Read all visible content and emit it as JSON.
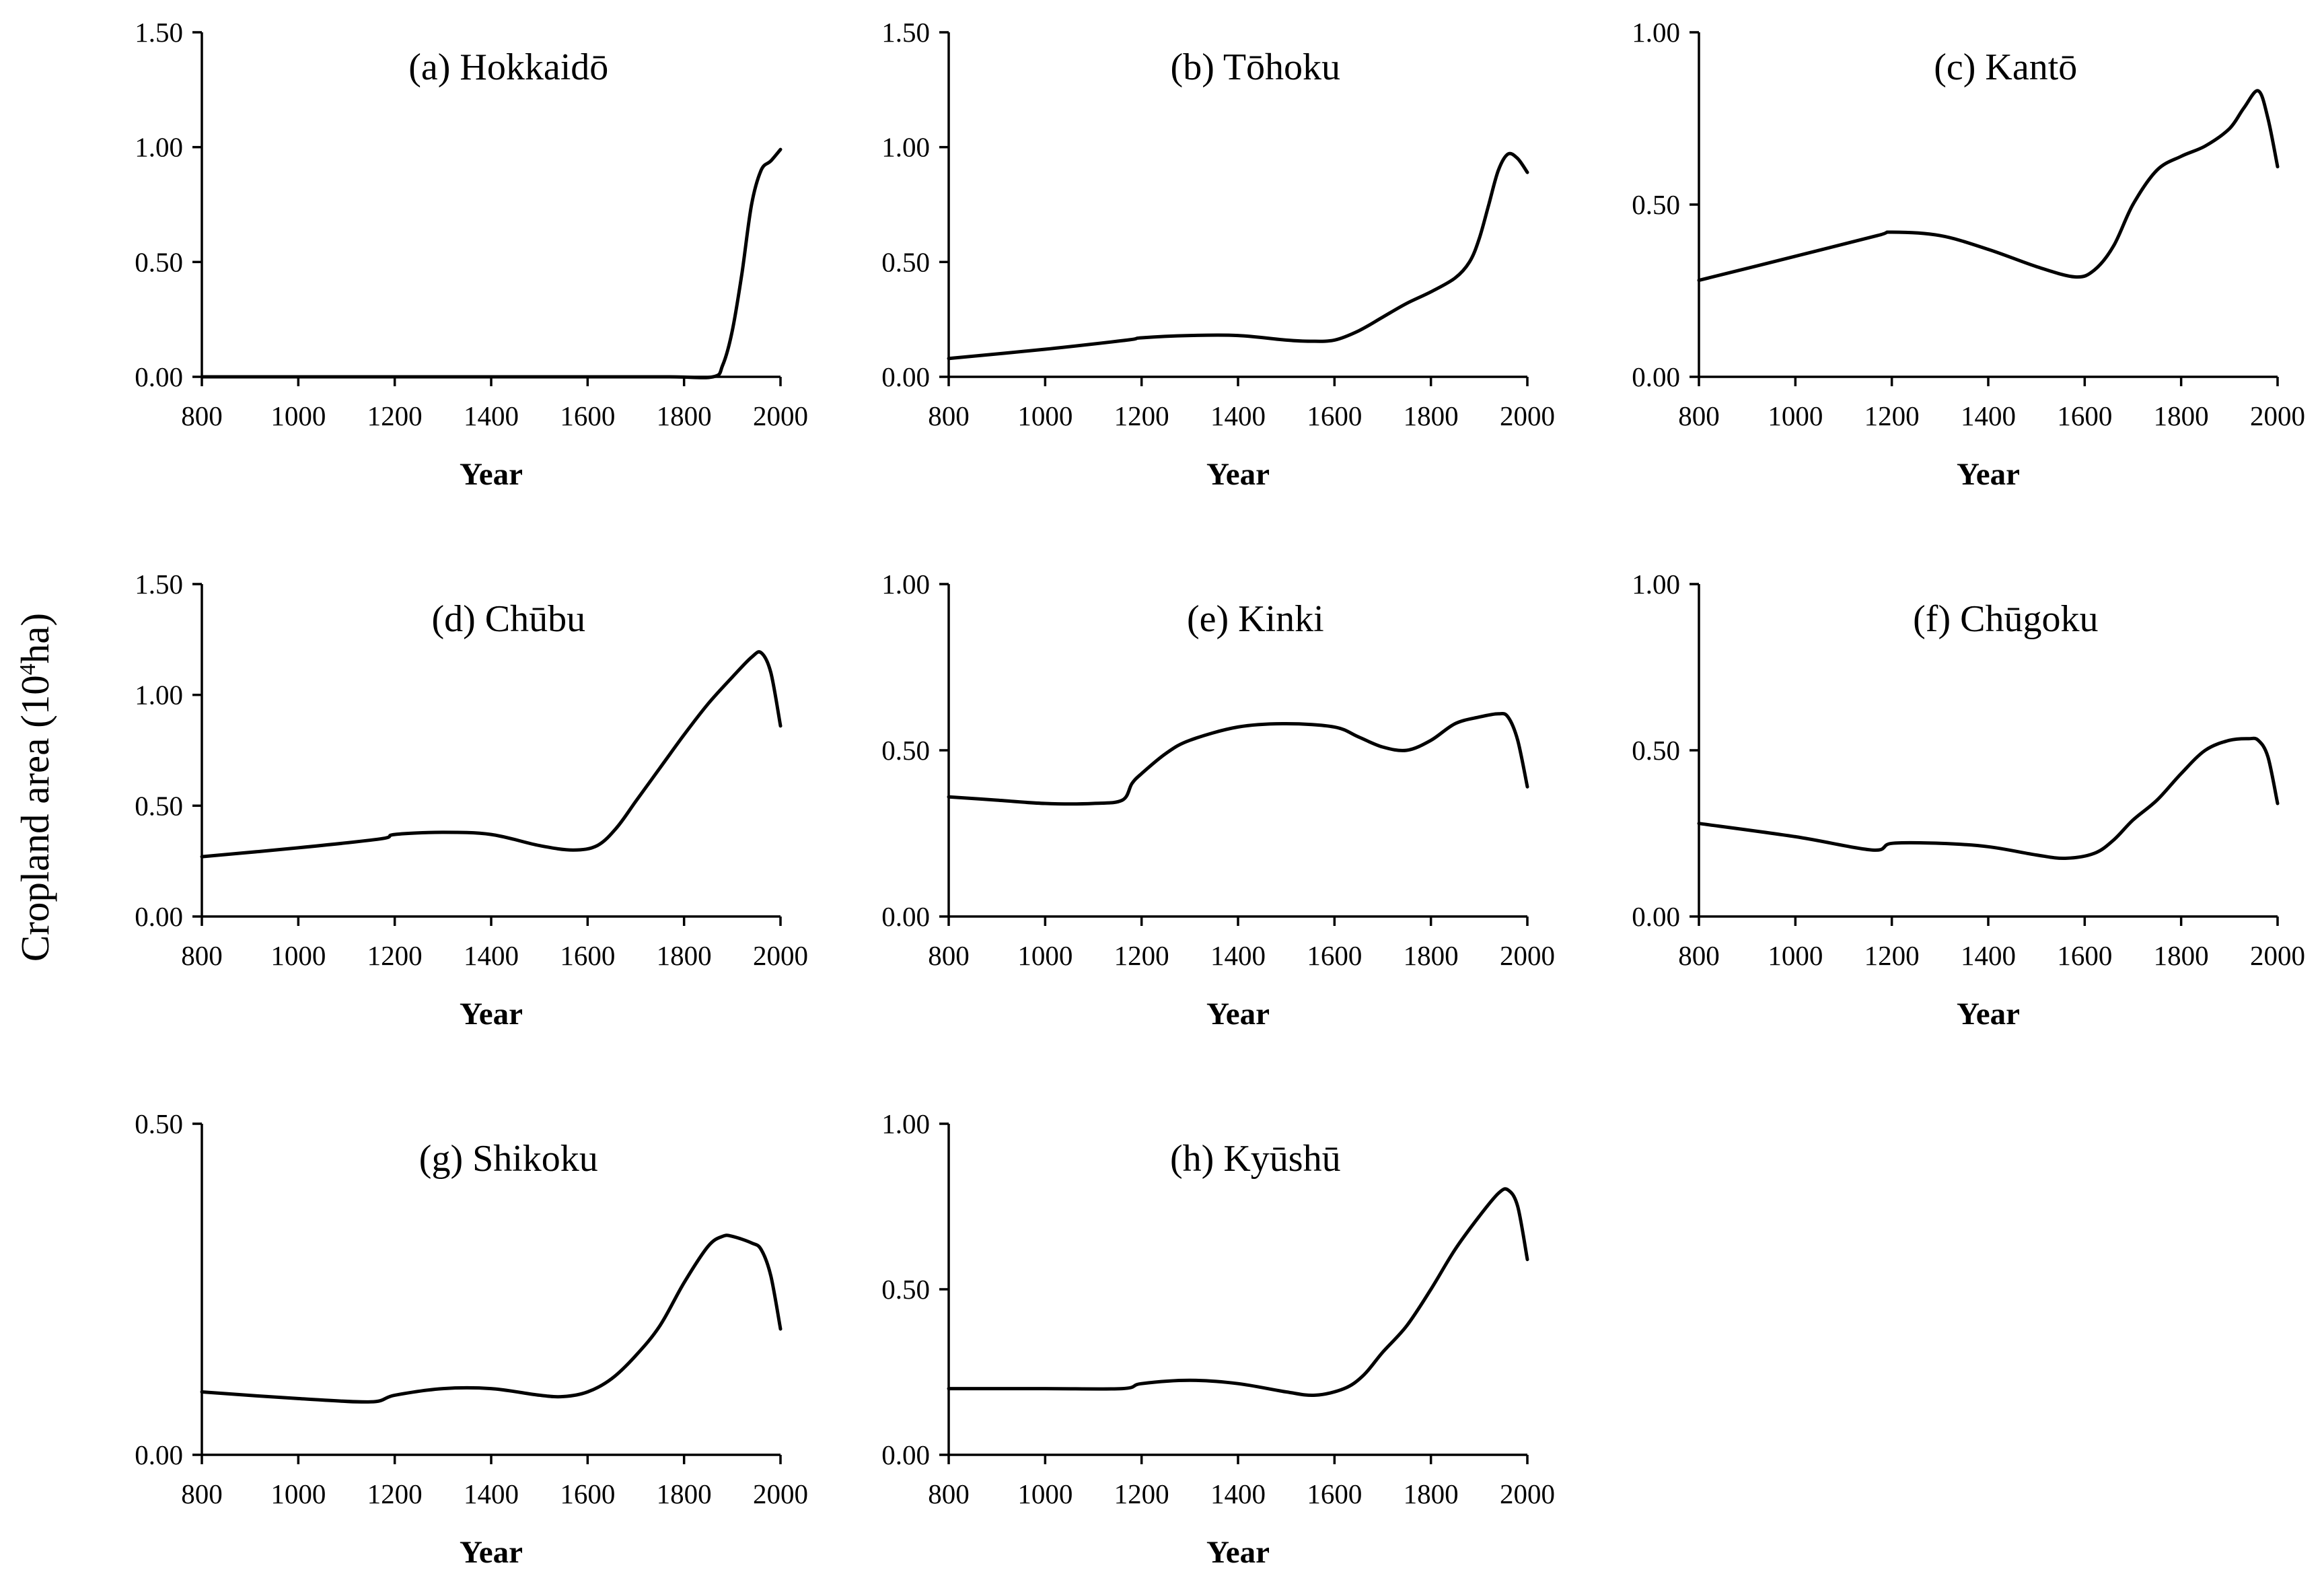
{
  "figure": {
    "ylabel_main": "Cropland area (10",
    "ylabel_sup": "4",
    "ylabel_unit": "ha)"
  },
  "chart_data": [
    {
      "type": "line",
      "title": "(a) Hokkaidō",
      "xlabel": "Year",
      "ylabel": "Cropland area (10^4 ha)",
      "xlim": [
        800,
        2000
      ],
      "ylim": [
        0,
        1.5
      ],
      "xticks": [
        800,
        1000,
        1200,
        1400,
        1600,
        1800,
        2000
      ],
      "yticks": [
        0.0,
        0.5,
        1.0,
        1.5
      ],
      "ytick_labels": [
        "0.00",
        "0.50",
        "1.00",
        "1.50"
      ],
      "series": [
        {
          "name": "Hokkaidō",
          "x": [
            800,
            1000,
            1200,
            1400,
            1600,
            1770,
            1860,
            1880,
            1900,
            1920,
            1940,
            1960,
            1980,
            2000
          ],
          "y": [
            0.0,
            0.0,
            0.0,
            0.0,
            0.0,
            0.0,
            0.0,
            0.05,
            0.2,
            0.45,
            0.75,
            0.9,
            0.94,
            0.99
          ]
        }
      ]
    },
    {
      "type": "line",
      "title": "(b) Tōhoku",
      "xlabel": "Year",
      "ylabel": "Cropland area (10^4 ha)",
      "xlim": [
        800,
        2000
      ],
      "ylim": [
        0,
        1.5
      ],
      "xticks": [
        800,
        1000,
        1200,
        1400,
        1600,
        1800,
        2000
      ],
      "yticks": [
        0.0,
        0.5,
        1.0,
        1.5
      ],
      "ytick_labels": [
        "0.00",
        "0.50",
        "1.00",
        "1.50"
      ],
      "series": [
        {
          "name": "Tōhoku",
          "x": [
            800,
            1000,
            1170,
            1200,
            1300,
            1400,
            1500,
            1550,
            1600,
            1650,
            1700,
            1750,
            1800,
            1850,
            1880,
            1900,
            1920,
            1940,
            1960,
            1980,
            2000
          ],
          "y": [
            0.08,
            0.12,
            0.16,
            0.17,
            0.18,
            0.18,
            0.16,
            0.155,
            0.16,
            0.2,
            0.26,
            0.32,
            0.37,
            0.43,
            0.5,
            0.6,
            0.75,
            0.9,
            0.97,
            0.95,
            0.89
          ]
        }
      ]
    },
    {
      "type": "line",
      "title": "(c) Kantō",
      "xlabel": "Year",
      "ylabel": "Cropland area (10^4 ha)",
      "xlim": [
        800,
        2000
      ],
      "ylim": [
        0,
        1.0
      ],
      "xticks": [
        800,
        1000,
        1200,
        1400,
        1600,
        1800,
        2000
      ],
      "yticks": [
        0.0,
        0.5,
        1.0
      ],
      "ytick_labels": [
        "0.00",
        "0.50",
        "1.00"
      ],
      "series": [
        {
          "name": "Kantō",
          "x": [
            800,
            1000,
            1170,
            1200,
            1300,
            1400,
            1500,
            1580,
            1620,
            1660,
            1700,
            1750,
            1800,
            1850,
            1900,
            1930,
            1960,
            1980,
            2000
          ],
          "y": [
            0.28,
            0.35,
            0.41,
            0.42,
            0.41,
            0.37,
            0.32,
            0.29,
            0.31,
            0.38,
            0.5,
            0.6,
            0.64,
            0.67,
            0.72,
            0.78,
            0.83,
            0.75,
            0.61
          ]
        }
      ]
    },
    {
      "type": "line",
      "title": "(d) Chūbu",
      "xlabel": "Year",
      "ylabel": "Cropland area (10^4 ha)",
      "xlim": [
        800,
        2000
      ],
      "ylim": [
        0,
        1.5
      ],
      "xticks": [
        800,
        1000,
        1200,
        1400,
        1600,
        1800,
        2000
      ],
      "yticks": [
        0.0,
        0.5,
        1.0,
        1.5
      ],
      "ytick_labels": [
        "0.00",
        "0.50",
        "1.00",
        "1.50"
      ],
      "series": [
        {
          "name": "Chūbu",
          "x": [
            800,
            1000,
            1170,
            1200,
            1300,
            1400,
            1500,
            1570,
            1620,
            1660,
            1700,
            1750,
            1800,
            1850,
            1900,
            1940,
            1960,
            1980,
            2000
          ],
          "y": [
            0.27,
            0.31,
            0.35,
            0.37,
            0.38,
            0.37,
            0.32,
            0.3,
            0.32,
            0.4,
            0.52,
            0.67,
            0.82,
            0.96,
            1.08,
            1.17,
            1.19,
            1.1,
            0.86
          ]
        }
      ]
    },
    {
      "type": "line",
      "title": "(e) Kinki",
      "xlabel": "Year",
      "ylabel": "Cropland area (10^4 ha)",
      "xlim": [
        800,
        2000
      ],
      "ylim": [
        0,
        1.0
      ],
      "xticks": [
        800,
        1000,
        1200,
        1400,
        1600,
        1800,
        2000
      ],
      "yticks": [
        0.0,
        0.5,
        1.0
      ],
      "ytick_labels": [
        "0.00",
        "0.50",
        "1.00"
      ],
      "series": [
        {
          "name": "Kinki",
          "x": [
            800,
            900,
            1000,
            1100,
            1160,
            1180,
            1200,
            1250,
            1300,
            1400,
            1500,
            1600,
            1650,
            1700,
            1750,
            1800,
            1850,
            1900,
            1940,
            1960,
            1980,
            2000
          ],
          "y": [
            0.36,
            0.35,
            0.34,
            0.34,
            0.35,
            0.4,
            0.43,
            0.49,
            0.53,
            0.57,
            0.58,
            0.57,
            0.54,
            0.51,
            0.5,
            0.53,
            0.58,
            0.6,
            0.61,
            0.6,
            0.53,
            0.39
          ]
        }
      ]
    },
    {
      "type": "line",
      "title": "(f) Chūgoku",
      "xlabel": "Year",
      "ylabel": "Cropland area (10^4 ha)",
      "xlim": [
        800,
        2000
      ],
      "ylim": [
        0,
        1.0
      ],
      "xticks": [
        800,
        1000,
        1200,
        1400,
        1600,
        1800,
        2000
      ],
      "yticks": [
        0.0,
        0.5,
        1.0
      ],
      "ytick_labels": [
        "0.00",
        "0.50",
        "1.00"
      ],
      "series": [
        {
          "name": "Chūgoku",
          "x": [
            800,
            1000,
            1160,
            1200,
            1300,
            1400,
            1500,
            1560,
            1620,
            1660,
            1700,
            1750,
            1800,
            1850,
            1900,
            1940,
            1960,
            1980,
            2000
          ],
          "y": [
            0.28,
            0.24,
            0.2,
            0.22,
            0.22,
            0.21,
            0.185,
            0.175,
            0.19,
            0.23,
            0.29,
            0.35,
            0.43,
            0.5,
            0.53,
            0.535,
            0.53,
            0.48,
            0.34
          ]
        }
      ]
    },
    {
      "type": "line",
      "title": "(g) Shikoku",
      "xlabel": "Year",
      "ylabel": "Cropland area (10^4 ha)",
      "xlim": [
        800,
        2000
      ],
      "ylim": [
        0,
        0.5
      ],
      "xticks": [
        800,
        1000,
        1200,
        1400,
        1600,
        1800,
        2000
      ],
      "yticks": [
        0.0,
        0.5
      ],
      "ytick_labels": [
        "0.00",
        "0.50"
      ],
      "series": [
        {
          "name": "Shikoku",
          "x": [
            800,
            1000,
            1150,
            1200,
            1300,
            1400,
            1500,
            1550,
            1600,
            1650,
            1700,
            1750,
            1800,
            1850,
            1880,
            1900,
            1940,
            1960,
            1980,
            2000
          ],
          "y": [
            0.095,
            0.085,
            0.08,
            0.09,
            0.1,
            0.1,
            0.09,
            0.088,
            0.095,
            0.115,
            0.15,
            0.195,
            0.26,
            0.315,
            0.33,
            0.33,
            0.32,
            0.31,
            0.27,
            0.19
          ]
        }
      ]
    },
    {
      "type": "line",
      "title": "(h) Kyūshū",
      "xlabel": "Year",
      "ylabel": "Cropland area (10^4 ha)",
      "xlim": [
        800,
        2000
      ],
      "ylim": [
        0,
        1.0
      ],
      "xticks": [
        800,
        1000,
        1200,
        1400,
        1600,
        1800,
        2000
      ],
      "yticks": [
        0.0,
        0.5,
        1.0
      ],
      "ytick_labels": [
        "0.00",
        "0.50",
        "1.00"
      ],
      "series": [
        {
          "name": "Kyūshū",
          "x": [
            800,
            1000,
            1160,
            1200,
            1300,
            1400,
            1500,
            1560,
            1620,
            1660,
            1700,
            1750,
            1800,
            1850,
            1900,
            1940,
            1960,
            1980,
            2000
          ],
          "y": [
            0.2,
            0.2,
            0.2,
            0.215,
            0.225,
            0.215,
            0.19,
            0.18,
            0.2,
            0.24,
            0.31,
            0.39,
            0.5,
            0.62,
            0.72,
            0.79,
            0.8,
            0.75,
            0.59
          ]
        }
      ]
    }
  ]
}
